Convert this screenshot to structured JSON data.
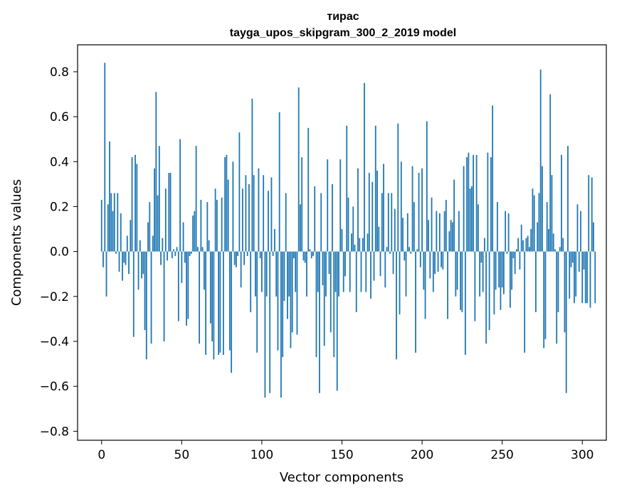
{
  "chart_data": {
    "type": "bar",
    "title": "тирас",
    "subtitle": "tayga_upos_skipgram_300_2_2019 model",
    "xlabel": "Vector components",
    "ylabel": "Components values",
    "xlim": [
      -15,
      315
    ],
    "ylim": [
      -0.84,
      0.92
    ],
    "xticks": [
      0,
      50,
      100,
      150,
      200,
      250,
      300
    ],
    "yticks": [
      -0.8,
      -0.6,
      -0.4,
      -0.2,
      0.0,
      0.2,
      0.4,
      0.6,
      0.8
    ],
    "xtick_labels": [
      "0",
      "50",
      "100",
      "150",
      "200",
      "250",
      "300"
    ],
    "ytick_labels": [
      "−0.8",
      "−0.6",
      "−0.4",
      "−0.2",
      "0.0",
      "0.2",
      "0.4",
      "0.6",
      "0.8"
    ],
    "bar_color": "#1f77b4",
    "grid": false,
    "legend": "none",
    "values": [
      0.23,
      -0.07,
      0.84,
      -0.2,
      0.21,
      0.49,
      0.26,
      0.18,
      0.26,
      -0.01,
      0.26,
      -0.09,
      0.17,
      -0.13,
      -0.05,
      -0.06,
      0.07,
      -0.1,
      0.14,
      0.42,
      -0.38,
      0.43,
      0.39,
      -0.17,
      0.05,
      -0.12,
      -0.1,
      -0.35,
      -0.48,
      0.13,
      0.22,
      -0.41,
      0.07,
      0.37,
      0.71,
      0.25,
      0.47,
      -0.06,
      0.06,
      -0.4,
      0.28,
      -0.04,
      0.35,
      0.35,
      -0.03,
      0.01,
      -0.02,
      0.02,
      -0.31,
      0.5,
      -0.14,
      0.13,
      -0.05,
      -0.33,
      -0.3,
      -0.02,
      -0.01,
      0.16,
      0.18,
      0.47,
      0.02,
      -0.41,
      0.23,
      0.02,
      -0.17,
      -0.46,
      0.22,
      0.05,
      -0.32,
      -0.4,
      -0.48,
      0.28,
      0.23,
      -0.46,
      -0.45,
      0.24,
      -0.46,
      0.42,
      0.43,
      0.32,
      -0.44,
      -0.54,
      0.4,
      -0.06,
      -0.07,
      -0.02,
      0.53,
      -0.16,
      0.28,
      -0.06,
      0.34,
      -0.02,
      0.3,
      -0.27,
      0.68,
      0.34,
      -0.2,
      -0.45,
      0.37,
      -0.03,
      -0.18,
      0.34,
      -0.65,
      -0.2,
      0.27,
      -0.63,
      0.33,
      -0.02,
      0.1,
      -0.2,
      -0.44,
      0.62,
      -0.65,
      -0.47,
      -0.22,
      0.26,
      -0.3,
      -0.2,
      -0.43,
      -0.36,
      -0.03,
      -0.18,
      -0.37,
      0.73,
      0.21,
      0.42,
      -0.04,
      -0.05,
      -0.2,
      0.55,
      0.01,
      -0.03,
      -0.02,
      0.29,
      -0.47,
      -0.18,
      -0.63,
      0.26,
      -0.15,
      -0.42,
      -0.2,
      0.41,
      -0.1,
      -0.36,
      0.3,
      -0.47,
      -0.18,
      -0.62,
      -0.2,
      0.41,
      0.1,
      -0.18,
      -0.11,
      0.56,
      0.24,
      -0.18,
      0.08,
      0.2,
      0.03,
      -0.27,
      0.37,
      0.06,
      -0.18,
      0.06,
      0.75,
      -0.18,
      0.08,
      0.35,
      -0.21,
      0.31,
      -0.13,
      0.56,
      0.36,
      0.11,
      -0.11,
      0.26,
      0.39,
      -0.16,
      0.02,
      0.26,
      -0.01,
      0.26,
      -0.1,
      0.19,
      -0.48,
      0.57,
      -0.28,
      0.4,
      0.15,
      -0.04,
      -0.2,
      0.17,
      0.02,
      -0.01,
      0.38,
      0.22,
      -0.45,
      0.01,
      0.35,
      -0.07,
      0.37,
      -0.17,
      -0.3,
      0.58,
      0.14,
      -0.12,
      0.24,
      -0.18,
      -0.1,
      0.18,
      -0.09,
      0.17,
      -0.07,
      -0.08,
      0.18,
      0.23,
      -0.3,
      0.09,
      0.14,
      0.13,
      0.32,
      -0.2,
      -0.17,
      0.18,
      -0.26,
      -0.27,
      0.38,
      -0.46,
      0.42,
      0.44,
      0.28,
      0.29,
      0.43,
      -0.31,
      0.43,
      0.21,
      -0.2,
      -0.05,
      -0.18,
      0.06,
      -0.41,
      0.44,
      -0.35,
      0.42,
      0.65,
      -0.28,
      -0.17,
      0.22,
      -0.16,
      -0.26,
      -0.16,
      -0.19,
      0.18,
      -0.01,
      0.17,
      -0.25,
      -0.17,
      -0.03,
      -0.1,
      0.01,
      0.06,
      -0.08,
      0.12,
      0.05,
      -0.45,
      0.06,
      0.07,
      0.02,
      0.1,
      0.28,
      0.25,
      -0.27,
      0.13,
      0.26,
      0.81,
      0.38,
      -0.43,
      -0.39,
      0.22,
      0.1,
      0.7,
      0.34,
      0.08,
      0.01,
      -0.41,
      -0.27,
      0.02,
      0.43,
      0.06,
      -0.36,
      -0.63,
      0.47,
      -0.21,
      -0.07,
      -0.05,
      -0.23,
      -0.2,
      0.21,
      -0.09,
      0.18,
      -0.23,
      -0.08,
      -0.23,
      -0.23,
      0.34,
      -0.25,
      0.33,
      0.13,
      -0.23
    ]
  }
}
